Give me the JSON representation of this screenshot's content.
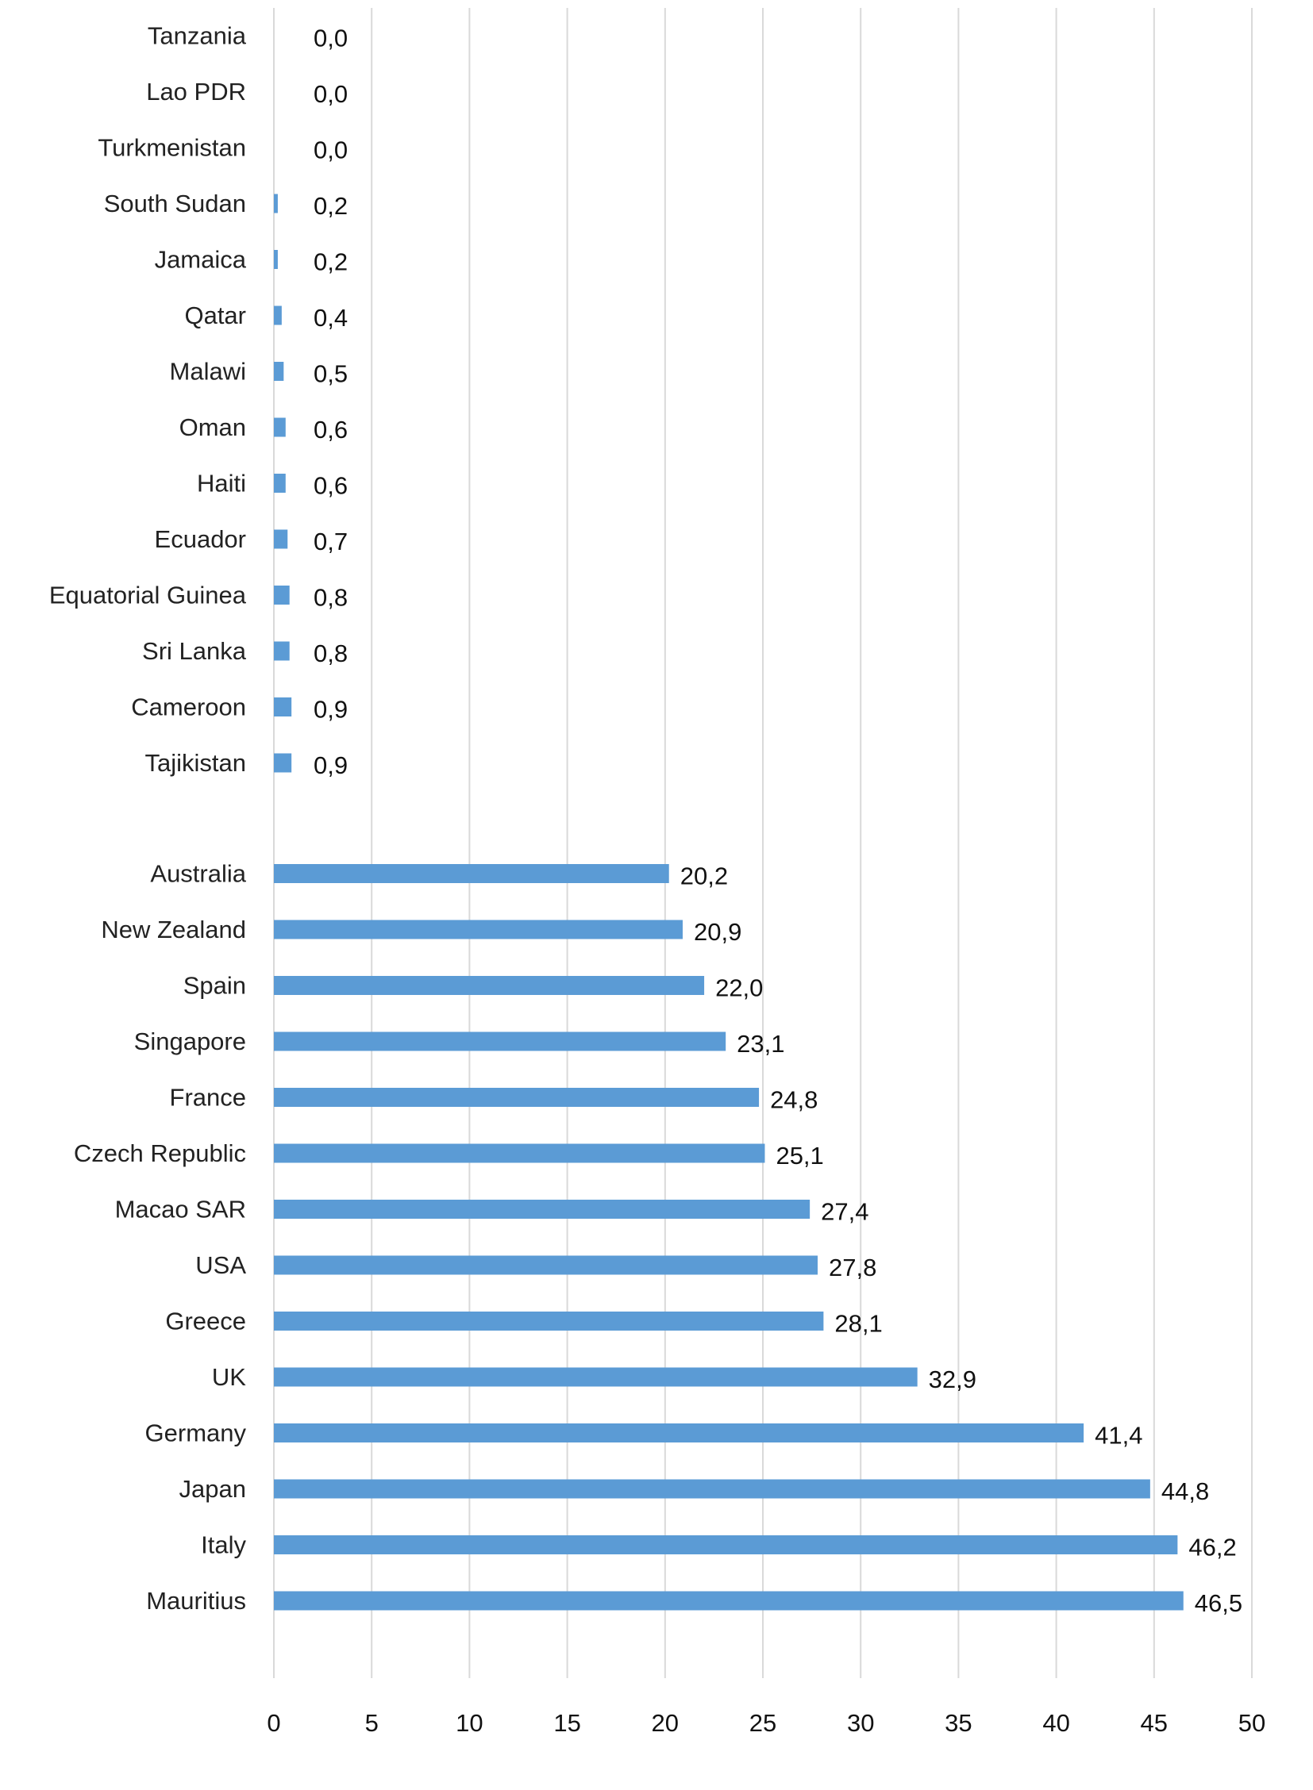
{
  "chart_data": {
    "type": "bar",
    "orientation": "horizontal",
    "title": "",
    "xlabel": "",
    "ylabel": "",
    "xlim": [
      0,
      50
    ],
    "x_ticks": [
      "0",
      "5",
      "10",
      "15",
      "20",
      "25",
      "30",
      "35",
      "40",
      "45",
      "50"
    ],
    "grid": "vertical",
    "legend": "none",
    "bar_color": "#5b9bd5",
    "groups": [
      {
        "categories": [
          "Tanzania",
          "Lao PDR",
          "Turkmenistan",
          "South Sudan",
          "Jamaica",
          "Qatar",
          "Malawi",
          "Oman",
          "Haiti",
          "Ecuador",
          "Equatorial Guinea",
          "Sri Lanka",
          "Cameroon",
          "Tajikistan"
        ],
        "values": [
          0.0,
          0.0,
          0.0,
          0.2,
          0.2,
          0.4,
          0.5,
          0.6,
          0.6,
          0.7,
          0.8,
          0.8,
          0.9,
          0.9
        ],
        "value_labels": [
          "0,0",
          "0,0",
          "0,0",
          "0,2",
          "0,2",
          "0,4",
          "0,5",
          "0,6",
          "0,6",
          "0,7",
          "0,8",
          "0,8",
          "0,9",
          "0,9"
        ]
      },
      {
        "categories": [
          "Australia",
          "New Zealand",
          "Spain",
          "Singapore",
          "France",
          "Czech Republic",
          "Macao SAR",
          "USA",
          "Greece",
          "UK",
          "Germany",
          "Japan",
          "Italy",
          "Mauritius"
        ],
        "values": [
          20.2,
          20.9,
          22.0,
          23.1,
          24.8,
          25.1,
          27.4,
          27.8,
          28.1,
          32.9,
          41.4,
          44.8,
          46.2,
          46.5
        ],
        "value_labels": [
          "20,2",
          "20,9",
          "22,0",
          "23,1",
          "24,8",
          "25,1",
          "27,4",
          "27,8",
          "28,1",
          "32,9",
          "41,4",
          "44,8",
          "46,2",
          "46,5"
        ]
      }
    ]
  }
}
